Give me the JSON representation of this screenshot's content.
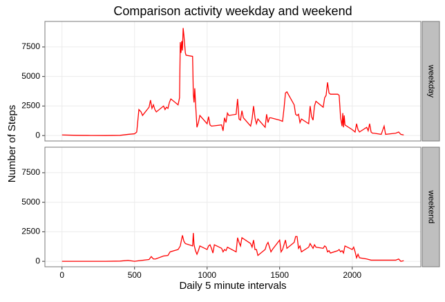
{
  "chart_data": [
    {
      "type": "line",
      "title": "Comparison activity weekday and weekend",
      "y_label": "Number of Steps",
      "panel_label": "weekday",
      "color": "#ff0000",
      "grid": true,
      "xlim": [
        -117.75,
        2472.75
      ],
      "xticks": [
        0,
        500,
        1000,
        1500,
        2000
      ],
      "ylim": [
        -460,
        9660
      ],
      "yticks": [
        0,
        2500,
        5000,
        7500
      ],
      "x": [
        0,
        100,
        200,
        300,
        400,
        455,
        500,
        515,
        530,
        545,
        555,
        600,
        610,
        620,
        630,
        640,
        650,
        700,
        710,
        720,
        730,
        740,
        750,
        800,
        810,
        815,
        820,
        825,
        830,
        835,
        840,
        850,
        855,
        900,
        905,
        910,
        915,
        920,
        930,
        940,
        950,
        1000,
        1010,
        1020,
        1030,
        1100,
        1110,
        1120,
        1130,
        1140,
        1150,
        1200,
        1210,
        1220,
        1230,
        1240,
        1250,
        1300,
        1310,
        1320,
        1330,
        1340,
        1350,
        1400,
        1410,
        1420,
        1430,
        1440,
        1500,
        1520,
        1530,
        1540,
        1550,
        1600,
        1610,
        1620,
        1630,
        1640,
        1650,
        1700,
        1710,
        1720,
        1730,
        1740,
        1750,
        1800,
        1810,
        1820,
        1830,
        1840,
        1850,
        1900,
        1910,
        1920,
        1930,
        1935,
        1940,
        1945,
        1950,
        2000,
        2020,
        2030,
        2040,
        2050,
        2100,
        2110,
        2120,
        2130,
        2140,
        2150,
        2200,
        2220,
        2230,
        2300,
        2320,
        2335,
        2355
      ],
      "values": [
        50,
        20,
        10,
        5,
        20,
        100,
        150,
        300,
        2200,
        2000,
        1700,
        2400,
        3000,
        2300,
        2600,
        2200,
        2000,
        2500,
        2200,
        2400,
        2300,
        2800,
        3100,
        2600,
        3200,
        7900,
        7000,
        8000,
        7200,
        9100,
        8500,
        7000,
        6800,
        6700,
        3500,
        2800,
        4000,
        2800,
        700,
        1100,
        1700,
        1000,
        1600,
        900,
        800,
        900,
        400,
        1500,
        1100,
        1900,
        1700,
        1800,
        3100,
        1400,
        1300,
        2100,
        1500,
        800,
        1400,
        2500,
        1500,
        1000,
        1400,
        700,
        1800,
        1100,
        1500,
        1500,
        1300,
        1200,
        2300,
        3600,
        3700,
        2600,
        1800,
        1700,
        1800,
        1100,
        1400,
        1000,
        2500,
        1600,
        1300,
        2500,
        2900,
        2400,
        3200,
        3400,
        4500,
        3600,
        3500,
        3500,
        3400,
        1500,
        800,
        1900,
        700,
        1700,
        900,
        500,
        300,
        1000,
        500,
        300,
        700,
        400,
        1000,
        300,
        200,
        200,
        100,
        800,
        100,
        200,
        300,
        100,
        50
      ]
    },
    {
      "type": "line",
      "x_label": "Daily 5 minute intervals",
      "panel_label": "weekend",
      "color": "#ff0000",
      "grid": true,
      "xlim": [
        -117.75,
        2472.75
      ],
      "xticks": [
        0,
        500,
        1000,
        1500,
        2000
      ],
      "ylim": [
        -460,
        9660
      ],
      "yticks": [
        0,
        2500,
        5000,
        7500
      ],
      "x": [
        0,
        100,
        200,
        300,
        400,
        455,
        500,
        530,
        600,
        615,
        630,
        645,
        700,
        730,
        745,
        800,
        815,
        830,
        840,
        850,
        900,
        905,
        910,
        920,
        930,
        940,
        950,
        1000,
        1010,
        1020,
        1030,
        1040,
        1050,
        1100,
        1110,
        1120,
        1130,
        1140,
        1200,
        1210,
        1220,
        1230,
        1240,
        1300,
        1310,
        1320,
        1330,
        1340,
        1350,
        1400,
        1410,
        1420,
        1430,
        1440,
        1450,
        1500,
        1510,
        1520,
        1530,
        1540,
        1550,
        1600,
        1610,
        1620,
        1630,
        1640,
        1650,
        1700,
        1710,
        1720,
        1730,
        1740,
        1750,
        1800,
        1810,
        1820,
        1830,
        1840,
        1850,
        1900,
        1910,
        1920,
        1930,
        1940,
        1950,
        2000,
        2010,
        2020,
        2030,
        2040,
        2050,
        2100,
        2130,
        2200,
        2300,
        2320,
        2335,
        2355
      ],
      "values": [
        0,
        0,
        0,
        0,
        20,
        80,
        0,
        50,
        150,
        400,
        200,
        200,
        450,
        500,
        800,
        1000,
        1300,
        2200,
        1700,
        1500,
        1300,
        2400,
        1400,
        900,
        600,
        900,
        1300,
        1000,
        1300,
        1400,
        1100,
        700,
        1400,
        1100,
        800,
        1000,
        900,
        1200,
        800,
        2000,
        1600,
        1300,
        2000,
        1500,
        1200,
        1800,
        1000,
        1000,
        500,
        1000,
        1400,
        1600,
        1200,
        800,
        1000,
        1800,
        800,
        1000,
        1400,
        1800,
        1100,
        1600,
        2100,
        2100,
        1100,
        1300,
        800,
        1200,
        1500,
        1300,
        1100,
        1400,
        1200,
        1100,
        1300,
        1200,
        800,
        900,
        700,
        900,
        1000,
        800,
        900,
        700,
        1300,
        1000,
        1200,
        800,
        300,
        600,
        300,
        200,
        100,
        100,
        100,
        200,
        0,
        50
      ]
    }
  ]
}
